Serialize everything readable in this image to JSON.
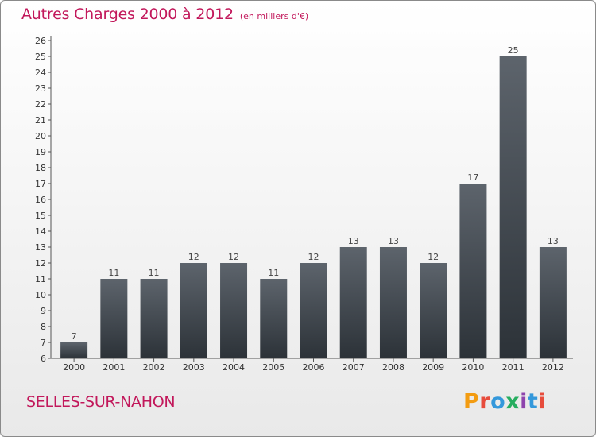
{
  "title": "Autres Charges 2000 à 2012",
  "subtitle": "(en milliers d'€)",
  "place": "SELLES-SUR-NAHON",
  "brand": "Proxiti",
  "brand_colors": [
    "#f39c12",
    "#e74c3c",
    "#3498db",
    "#27ae60",
    "#8e44ad",
    "#3498db",
    "#e74c3c"
  ],
  "colors": {
    "title": "#c2185b",
    "bar_top": "#5d646c",
    "bar_bottom": "#2c3238"
  },
  "chart_data": {
    "type": "bar",
    "categories": [
      "2000",
      "2001",
      "2002",
      "2003",
      "2004",
      "2005",
      "2006",
      "2007",
      "2008",
      "2009",
      "2010",
      "2011",
      "2012"
    ],
    "values": [
      7,
      11,
      11,
      12,
      12,
      11,
      12,
      13,
      13,
      12,
      17,
      25,
      13
    ],
    "ylim": [
      6,
      26
    ],
    "yticks": [
      6,
      7,
      8,
      9,
      10,
      11,
      12,
      13,
      14,
      15,
      16,
      17,
      18,
      19,
      20,
      21,
      22,
      23,
      24,
      25,
      26
    ],
    "grid": false,
    "xlabel": "",
    "ylabel": ""
  }
}
